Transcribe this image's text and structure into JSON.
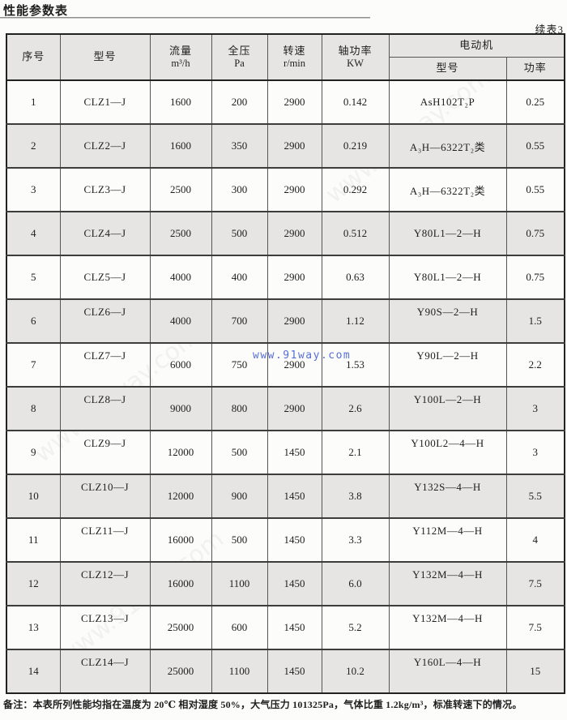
{
  "page": {
    "title": "性能参数表",
    "continued_label": "续表3",
    "watermark": "www.91way.com",
    "footnote": "备注：本表所列性能均指在温度为 20℃ 相对湿度 50%，大气压力 101325Pa，气体比重 1.2kg/m³，标准转速下的情况。"
  },
  "colors": {
    "stripe": "#e6e5e3",
    "border-dark": "#222222",
    "watermark-blue": "#3f5cd0"
  },
  "table": {
    "columns": [
      {
        "label": "序号",
        "unit": ""
      },
      {
        "label": "型号",
        "unit": ""
      },
      {
        "label": "流量",
        "unit": "m³/h"
      },
      {
        "label": "全压",
        "unit": "Pa"
      },
      {
        "label": "转速",
        "unit": "r/min"
      },
      {
        "label": "轴功率",
        "unit": "KW"
      }
    ],
    "motor_group": {
      "label": "电动机",
      "sub_columns": [
        "型号",
        "功率"
      ]
    },
    "rows": [
      [
        "1",
        "CLZ1—J",
        "1600",
        "200",
        "2900",
        "0.142",
        "AsH102T₂P",
        "0.25"
      ],
      [
        "2",
        "CLZ2—J",
        "1600",
        "350",
        "2900",
        "0.219",
        "A₃H—6322T₂类",
        "0.55"
      ],
      [
        "3",
        "CLZ3—J",
        "2500",
        "300",
        "2900",
        "0.292",
        "A₃H—6322T₂类",
        "0.55"
      ],
      [
        "4",
        "CLZ4—J",
        "2500",
        "500",
        "2900",
        "0.512",
        "Y80L1—2—H",
        "0.75"
      ],
      [
        "5",
        "CLZ5—J",
        "4000",
        "400",
        "2900",
        "0.63",
        "Y80L1—2—H",
        "0.75"
      ],
      [
        "6",
        "CLZ6—J",
        "4000",
        "700",
        "2900",
        "1.12",
        "Y90S—2—H",
        "1.5"
      ],
      [
        "7",
        "CLZ7—J",
        "6000",
        "750",
        "2900",
        "1.53",
        "Y90L—2—H",
        "2.2"
      ],
      [
        "8",
        "CLZ8—J",
        "9000",
        "800",
        "2900",
        "2.6",
        "Y100L—2—H",
        "3"
      ],
      [
        "9",
        "CLZ9—J",
        "12000",
        "500",
        "1450",
        "2.1",
        "Y100L2—4—H",
        "3"
      ],
      [
        "10",
        "CLZ10—J",
        "12000",
        "900",
        "1450",
        "3.8",
        "Y132S—4—H",
        "5.5"
      ],
      [
        "11",
        "CLZ11—J",
        "16000",
        "500",
        "1450",
        "3.3",
        "Y112M—4—H",
        "4"
      ],
      [
        "12",
        "CLZ12—J",
        "16000",
        "1100",
        "1450",
        "6.0",
        "Y132M—4—H",
        "7.5"
      ],
      [
        "13",
        "CLZ13—J",
        "25000",
        "600",
        "1450",
        "5.2",
        "Y132M—4—H",
        "7.5"
      ],
      [
        "14",
        "CLZ14—J",
        "25000",
        "1100",
        "1450",
        "10.2",
        "Y160L—4—H",
        "15"
      ]
    ]
  }
}
